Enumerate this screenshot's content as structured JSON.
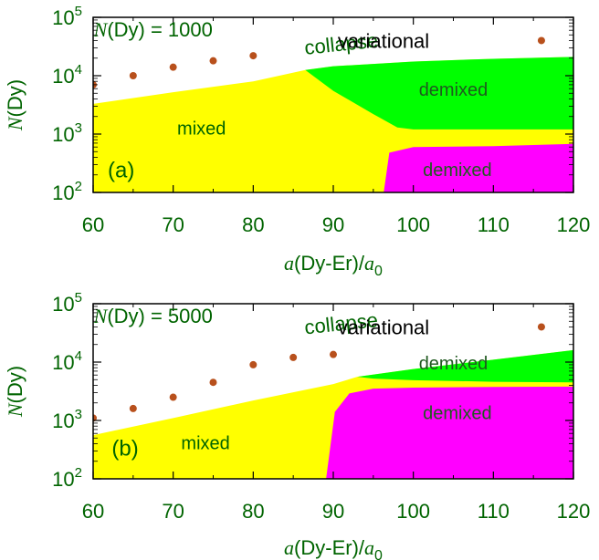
{
  "colors": {
    "text": "#006400",
    "mixed": "#ffff00",
    "demixed_green": "#00ff00",
    "demixed_magenta": "#ff00ff",
    "variational_points": "#b8501c",
    "demixed_label": "#1f5a1f"
  },
  "chart_data": [
    {
      "type": "area",
      "panel_label": "(a)",
      "inset_label": {
        "n_italic": "N",
        "rest": "(Dy) = 1000"
      },
      "xlabel": {
        "a_italic": "a",
        "mid": "(Dy-Er)/",
        "a0_italic": "a",
        "sub": "0"
      },
      "ylabel": {
        "n_italic": "N",
        "rest": "(Dy)"
      },
      "xlim": [
        60,
        120
      ],
      "ylim": [
        100,
        100000
      ],
      "yscale": "log",
      "x_ticks": [
        "60",
        "70",
        "80",
        "90",
        "100",
        "110",
        "120"
      ],
      "y_ticks": [
        {
          "base": "10",
          "exp": "2"
        },
        {
          "base": "10",
          "exp": "3"
        },
        {
          "base": "10",
          "exp": "4"
        },
        {
          "base": "10",
          "exp": "5"
        }
      ],
      "region_labels": {
        "collapse": "collapse",
        "mixed": "mixed",
        "demixed_upper": "demixed",
        "demixed_lower": "demixed"
      },
      "legend": {
        "label": "variational",
        "position": "top-right"
      },
      "boundaries": {
        "collapse": {
          "x": [
            60,
            70,
            80,
            86.5,
            90,
            100,
            110,
            120
          ],
          "y": [
            3300,
            5200,
            8000,
            12500,
            14500,
            17500,
            19500,
            21000
          ]
        },
        "green_lower": {
          "x": [
            86.5,
            90,
            95,
            98,
            100,
            110,
            120
          ],
          "y": [
            12500,
            5500,
            2200,
            1300,
            1200,
            1200,
            1200
          ]
        },
        "magenta_upper": {
          "x": [
            96.3,
            97,
            100,
            110,
            120
          ],
          "y": [
            100,
            480,
            600,
            620,
            680
          ]
        }
      },
      "variational": {
        "x": [
          60,
          65,
          70,
          75,
          80
        ],
        "y": [
          7000,
          10000,
          14000,
          18000,
          22000
        ]
      }
    },
    {
      "type": "area",
      "panel_label": "(b)",
      "inset_label": {
        "n_italic": "N",
        "rest": "(Dy) = 5000"
      },
      "xlabel": {
        "a_italic": "a",
        "mid": "(Dy-Er)/",
        "a0_italic": "a",
        "sub": "0"
      },
      "ylabel": {
        "n_italic": "N",
        "rest": "(Dy)"
      },
      "xlim": [
        60,
        120
      ],
      "ylim": [
        100,
        100000
      ],
      "yscale": "log",
      "x_ticks": [
        "60",
        "70",
        "80",
        "90",
        "100",
        "110",
        "120"
      ],
      "y_ticks": [
        {
          "base": "10",
          "exp": "2"
        },
        {
          "base": "10",
          "exp": "3"
        },
        {
          "base": "10",
          "exp": "4"
        },
        {
          "base": "10",
          "exp": "5"
        }
      ],
      "region_labels": {
        "collapse": "collapse",
        "mixed": "mixed",
        "demixed_upper": "demixed",
        "demixed_lower": "demixed"
      },
      "legend": {
        "label": "variational",
        "position": "top-right"
      },
      "boundaries": {
        "collapse": {
          "x": [
            60,
            70,
            80,
            90,
            93,
            100,
            110,
            120
          ],
          "y": [
            560,
            1100,
            2200,
            4200,
            5600,
            7600,
            11000,
            16000
          ]
        },
        "green_lower": {
          "x": [
            93,
            95,
            100,
            110,
            120
          ],
          "y": [
            5600,
            5200,
            4900,
            4600,
            4500
          ]
        },
        "magenta_upper": {
          "x": [
            89.1,
            90.2,
            92,
            95,
            100,
            110,
            120
          ],
          "y": [
            100,
            1400,
            2900,
            3500,
            3650,
            3750,
            3800
          ]
        }
      },
      "variational": {
        "x": [
          60,
          65,
          70,
          75,
          80,
          85,
          90
        ],
        "y": [
          1100,
          1600,
          2500,
          4500,
          9000,
          12000,
          13500
        ]
      }
    }
  ]
}
